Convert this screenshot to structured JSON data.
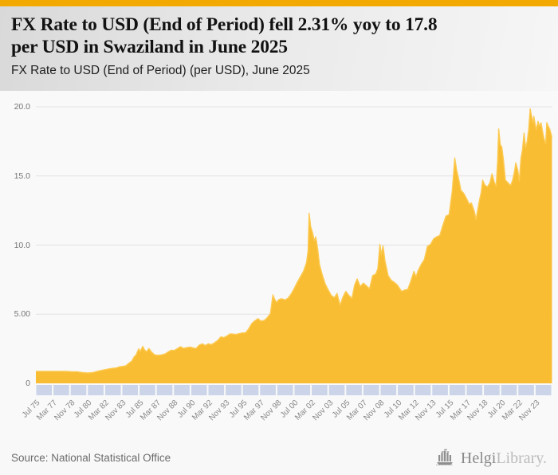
{
  "theme": {
    "accent_bar": "#F2A900",
    "area_fill": "#F9BD33",
    "area_edge": "#FCCA52",
    "tick_band": "#CBD4E8",
    "gridline": "#E2E2E2",
    "axis_text": "#868686"
  },
  "header": {
    "title_lines": [
      "FX Rate to USD (End of Period) fell 2.31% yoy to 17.8",
      "per USD in Swaziland in June 2025"
    ],
    "subtitle": "FX Rate to USD (End of Period) (per USD), June 2025"
  },
  "footer": {
    "source": "Source: National Statistical Office",
    "brand_primary": "Helgi",
    "brand_secondary": "Library.",
    "brand_icon": "helgilibrary-castle-icon"
  },
  "chart_data": {
    "type": "area",
    "title": "FX Rate to USD (End of Period) (per USD), June 2025",
    "xlabel": "",
    "ylabel": "",
    "grid": true,
    "legend": false,
    "x_range": [
      1975.5,
      2025.5
    ],
    "ylim": [
      0,
      20
    ],
    "latest_value": 17.8,
    "latest_period": "June 2025",
    "yoy_change_pct": -2.31,
    "country": "Swaziland",
    "y_ticks": [
      {
        "value": 0,
        "label": "0"
      },
      {
        "value": 5,
        "label": "5.00"
      },
      {
        "value": 10,
        "label": "10.0"
      },
      {
        "value": 15,
        "label": "15.0"
      },
      {
        "value": 20,
        "label": "20.0"
      }
    ],
    "x_tick_labels": [
      "Jul 75",
      "Mar 77",
      "Nov 78",
      "Jul 80",
      "Mar 82",
      "Nov 83",
      "Jul 85",
      "Mar 87",
      "Nov 88",
      "Jul 90",
      "Mar 92",
      "Nov 93",
      "Jul 95",
      "Mar 97",
      "Nov 98",
      "Jul 00",
      "Mar 02",
      "Nov 03",
      "Jul 05",
      "Mar 07",
      "Nov 08",
      "Jul 10",
      "Mar 12",
      "Nov 13",
      "Jul 15",
      "Mar 17",
      "Nov 18",
      "Jul 20",
      "Mar 22",
      "Nov 23"
    ],
    "points": [
      [
        1975.5,
        0.87
      ],
      [
        1976.0,
        0.87
      ],
      [
        1976.5,
        0.87
      ],
      [
        1977.0,
        0.87
      ],
      [
        1977.5,
        0.87
      ],
      [
        1978.0,
        0.87
      ],
      [
        1978.5,
        0.87
      ],
      [
        1979.0,
        0.84
      ],
      [
        1979.5,
        0.84
      ],
      [
        1980.0,
        0.78
      ],
      [
        1980.5,
        0.75
      ],
      [
        1981.0,
        0.78
      ],
      [
        1981.5,
        0.88
      ],
      [
        1982.0,
        0.96
      ],
      [
        1982.5,
        1.04
      ],
      [
        1983.0,
        1.09
      ],
      [
        1983.3,
        1.12
      ],
      [
        1983.6,
        1.2
      ],
      [
        1983.9,
        1.23
      ],
      [
        1984.2,
        1.27
      ],
      [
        1984.5,
        1.45
      ],
      [
        1984.8,
        1.62
      ],
      [
        1985.0,
        1.9
      ],
      [
        1985.2,
        2.05
      ],
      [
        1985.45,
        2.5
      ],
      [
        1985.6,
        2.3
      ],
      [
        1985.85,
        2.68
      ],
      [
        1986.0,
        2.44
      ],
      [
        1986.2,
        2.28
      ],
      [
        1986.45,
        2.52
      ],
      [
        1986.7,
        2.26
      ],
      [
        1987.0,
        2.06
      ],
      [
        1987.3,
        2.03
      ],
      [
        1987.6,
        2.05
      ],
      [
        1988.0,
        2.12
      ],
      [
        1988.3,
        2.27
      ],
      [
        1988.6,
        2.4
      ],
      [
        1988.9,
        2.38
      ],
      [
        1989.2,
        2.52
      ],
      [
        1989.5,
        2.65
      ],
      [
        1989.8,
        2.53
      ],
      [
        1990.1,
        2.58
      ],
      [
        1990.4,
        2.63
      ],
      [
        1990.7,
        2.57
      ],
      [
        1991.0,
        2.52
      ],
      [
        1991.3,
        2.76
      ],
      [
        1991.6,
        2.86
      ],
      [
        1991.9,
        2.74
      ],
      [
        1992.2,
        2.86
      ],
      [
        1992.5,
        2.8
      ],
      [
        1992.8,
        2.94
      ],
      [
        1993.1,
        3.1
      ],
      [
        1993.4,
        3.36
      ],
      [
        1993.7,
        3.31
      ],
      [
        1994.0,
        3.43
      ],
      [
        1994.3,
        3.58
      ],
      [
        1994.6,
        3.56
      ],
      [
        1994.9,
        3.54
      ],
      [
        1995.2,
        3.6
      ],
      [
        1995.5,
        3.65
      ],
      [
        1995.8,
        3.66
      ],
      [
        1996.1,
        3.95
      ],
      [
        1996.4,
        4.33
      ],
      [
        1996.7,
        4.53
      ],
      [
        1997.0,
        4.68
      ],
      [
        1997.3,
        4.5
      ],
      [
        1997.6,
        4.55
      ],
      [
        1997.9,
        4.75
      ],
      [
        1998.2,
        5.05
      ],
      [
        1998.45,
        6.4
      ],
      [
        1998.6,
        6.1
      ],
      [
        1998.8,
        5.85
      ],
      [
        1999.0,
        6.05
      ],
      [
        1999.3,
        6.12
      ],
      [
        1999.6,
        6.03
      ],
      [
        1999.9,
        6.15
      ],
      [
        2000.2,
        6.45
      ],
      [
        2000.5,
        6.85
      ],
      [
        2000.8,
        7.3
      ],
      [
        2001.1,
        7.7
      ],
      [
        2001.4,
        8.1
      ],
      [
        2001.7,
        8.75
      ],
      [
        2001.85,
        9.6
      ],
      [
        2001.95,
        12.3
      ],
      [
        2002.1,
        11.35
      ],
      [
        2002.3,
        10.85
      ],
      [
        2002.45,
        10.3
      ],
      [
        2002.6,
        10.6
      ],
      [
        2002.8,
        9.6
      ],
      [
        2002.95,
        8.6
      ],
      [
        2003.2,
        7.9
      ],
      [
        2003.5,
        7.2
      ],
      [
        2003.8,
        6.75
      ],
      [
        2004.1,
        6.35
      ],
      [
        2004.4,
        6.2
      ],
      [
        2004.65,
        6.5
      ],
      [
        2004.95,
        5.65
      ],
      [
        2005.2,
        6.2
      ],
      [
        2005.5,
        6.65
      ],
      [
        2005.8,
        6.35
      ],
      [
        2006.1,
        6.15
      ],
      [
        2006.35,
        7.1
      ],
      [
        2006.6,
        7.55
      ],
      [
        2006.9,
        7.0
      ],
      [
        2007.2,
        7.25
      ],
      [
        2007.5,
        7.05
      ],
      [
        2007.8,
        6.85
      ],
      [
        2008.1,
        7.8
      ],
      [
        2008.4,
        7.9
      ],
      [
        2008.6,
        8.3
      ],
      [
        2008.8,
        10.05
      ],
      [
        2008.95,
        9.3
      ],
      [
        2009.1,
        9.95
      ],
      [
        2009.3,
        8.85
      ],
      [
        2009.6,
        7.8
      ],
      [
        2009.9,
        7.45
      ],
      [
        2010.2,
        7.3
      ],
      [
        2010.5,
        7.1
      ],
      [
        2010.9,
        6.65
      ],
      [
        2011.2,
        6.75
      ],
      [
        2011.5,
        6.8
      ],
      [
        2011.8,
        7.4
      ],
      [
        2012.1,
        8.1
      ],
      [
        2012.3,
        7.7
      ],
      [
        2012.5,
        8.15
      ],
      [
        2012.8,
        8.6
      ],
      [
        2013.1,
        8.95
      ],
      [
        2013.4,
        9.9
      ],
      [
        2013.7,
        10.05
      ],
      [
        2014.0,
        10.45
      ],
      [
        2014.3,
        10.6
      ],
      [
        2014.6,
        10.7
      ],
      [
        2014.95,
        11.55
      ],
      [
        2015.2,
        12.1
      ],
      [
        2015.5,
        12.2
      ],
      [
        2015.8,
        13.9
      ],
      [
        2016.05,
        16.3
      ],
      [
        2016.25,
        15.35
      ],
      [
        2016.45,
        14.7
      ],
      [
        2016.65,
        13.95
      ],
      [
        2016.85,
        13.8
      ],
      [
        2016.95,
        13.7
      ],
      [
        2017.2,
        13.35
      ],
      [
        2017.45,
        12.95
      ],
      [
        2017.65,
        13.05
      ],
      [
        2017.95,
        12.4
      ],
      [
        2018.1,
        11.85
      ],
      [
        2018.4,
        13.1
      ],
      [
        2018.6,
        13.8
      ],
      [
        2018.75,
        14.7
      ],
      [
        2018.95,
        14.35
      ],
      [
        2019.2,
        14.2
      ],
      [
        2019.45,
        14.5
      ],
      [
        2019.65,
        15.15
      ],
      [
        2019.85,
        14.6
      ],
      [
        2020.05,
        14.25
      ],
      [
        2020.2,
        16.1
      ],
      [
        2020.3,
        18.4
      ],
      [
        2020.45,
        17.25
      ],
      [
        2020.6,
        17.1
      ],
      [
        2020.75,
        16.25
      ],
      [
        2020.95,
        14.7
      ],
      [
        2021.2,
        14.5
      ],
      [
        2021.45,
        14.3
      ],
      [
        2021.65,
        14.7
      ],
      [
        2021.85,
        15.4
      ],
      [
        2021.95,
        15.95
      ],
      [
        2022.15,
        15.4
      ],
      [
        2022.3,
        14.65
      ],
      [
        2022.45,
        16.25
      ],
      [
        2022.6,
        16.9
      ],
      [
        2022.75,
        18.1
      ],
      [
        2022.9,
        17.05
      ],
      [
        2023.05,
        17.45
      ],
      [
        2023.2,
        18.35
      ],
      [
        2023.35,
        19.85
      ],
      [
        2023.5,
        19.25
      ],
      [
        2023.6,
        18.85
      ],
      [
        2023.7,
        19.3
      ],
      [
        2023.85,
        18.65
      ],
      [
        2023.95,
        18.35
      ],
      [
        2024.1,
        18.95
      ],
      [
        2024.25,
        18.6
      ],
      [
        2024.4,
        18.85
      ],
      [
        2024.55,
        18.2
      ],
      [
        2024.7,
        17.65
      ],
      [
        2024.85,
        17.35
      ],
      [
        2024.95,
        18.85
      ],
      [
        2025.1,
        18.6
      ],
      [
        2025.25,
        18.35
      ],
      [
        2025.45,
        17.8
      ]
    ]
  }
}
